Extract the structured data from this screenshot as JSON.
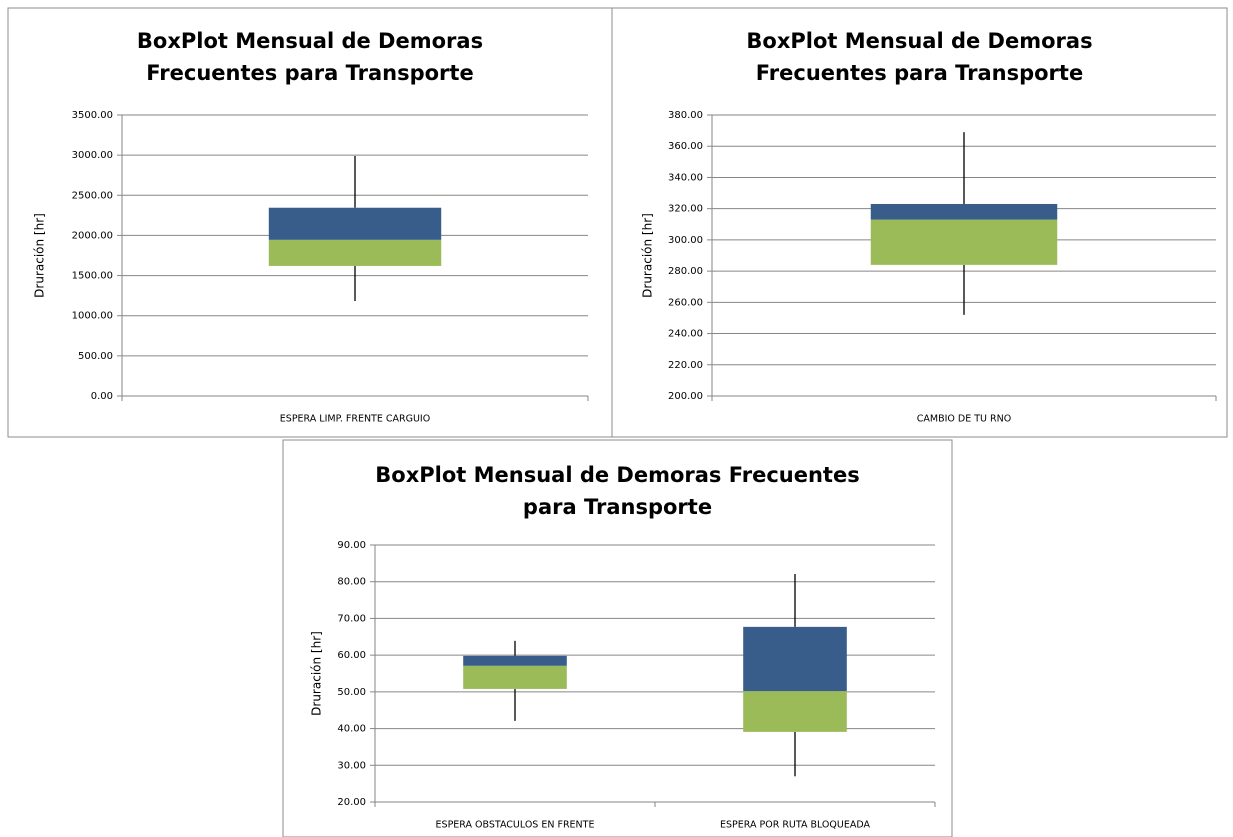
{
  "chart_data": [
    {
      "type": "box",
      "title": [
        "BoxPlot Mensual de Demoras",
        "Frecuentes para Transporte"
      ],
      "ylabel": "Druración [hr]",
      "categories": [
        "ESPERA LIMP. FRENTE CARGUIO"
      ],
      "low": [
        1183
      ],
      "q1": [
        1620
      ],
      "median": [
        1945
      ],
      "q3": [
        2345
      ],
      "high": [
        2990
      ],
      "lower_color": "#9bbb59",
      "upper_color": "#385d8a",
      "whisker_color": "#000000",
      "ylim": [
        0,
        3500
      ],
      "yticks": [
        {
          "value": 0,
          "label": "0.00"
        },
        {
          "value": 500,
          "label": "500.00"
        },
        {
          "value": 1000,
          "label": "1000.00"
        },
        {
          "value": 1500,
          "label": "1500.00"
        },
        {
          "value": 2000,
          "label": "2000.00"
        },
        {
          "value": 2500,
          "label": "2500.00"
        },
        {
          "value": 3000,
          "label": "3000.00"
        },
        {
          "value": 3500,
          "label": "3500.00"
        }
      ],
      "grid": true
    },
    {
      "type": "box",
      "title": [
        "BoxPlot Mensual de Demoras",
        "Frecuentes para Transporte"
      ],
      "ylabel": "Druración [hr]",
      "categories": [
        "CAMBIO DE TU RNO"
      ],
      "low": [
        252
      ],
      "q1": [
        284
      ],
      "median": [
        313
      ],
      "q3": [
        323
      ],
      "high": [
        369
      ],
      "lower_color": "#9bbb59",
      "upper_color": "#385d8a",
      "whisker_color": "#000000",
      "ylim": [
        200,
        380
      ],
      "yticks": [
        {
          "value": 200,
          "label": "200.00"
        },
        {
          "value": 220,
          "label": "220.00"
        },
        {
          "value": 240,
          "label": "240.00"
        },
        {
          "value": 260,
          "label": "260.00"
        },
        {
          "value": 280,
          "label": "280.00"
        },
        {
          "value": 300,
          "label": "300.00"
        },
        {
          "value": 320,
          "label": "320.00"
        },
        {
          "value": 340,
          "label": "340.00"
        },
        {
          "value": 360,
          "label": "360.00"
        },
        {
          "value": 380,
          "label": "380.00"
        }
      ],
      "grid": true
    },
    {
      "type": "box",
      "title": [
        "BoxPlot Mensual de Demoras Frecuentes",
        "para Transporte"
      ],
      "ylabel": "Druración [hr]",
      "categories": [
        "ESPERA OBSTACULOS EN FRENTE",
        "ESPERA POR RUTA BLOQUEADA"
      ],
      "low": [
        42.1,
        27
      ],
      "q1": [
        50.8,
        39.1
      ],
      "median": [
        57.1,
        50.2
      ],
      "q3": [
        59.8,
        67.7
      ],
      "high": [
        63.9,
        82.1
      ],
      "lower_color": "#9bbb59",
      "upper_color": "#385d8a",
      "whisker_color": "#000000",
      "ylim": [
        20,
        90
      ],
      "yticks": [
        {
          "value": 20,
          "label": "20.00"
        },
        {
          "value": 30,
          "label": "30.00"
        },
        {
          "value": 40,
          "label": "40.00"
        },
        {
          "value": 50,
          "label": "50.00"
        },
        {
          "value": 60,
          "label": "60.00"
        },
        {
          "value": 70,
          "label": "70.00"
        },
        {
          "value": 80,
          "label": "80.00"
        },
        {
          "value": 90,
          "label": "90.00"
        }
      ],
      "grid": true
    }
  ]
}
